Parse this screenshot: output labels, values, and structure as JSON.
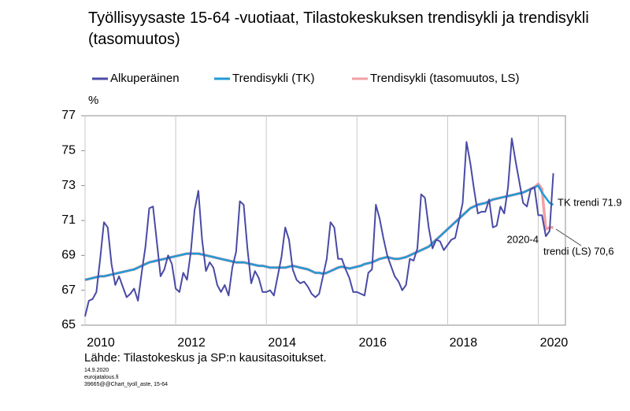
{
  "chart_data": {
    "type": "line",
    "title": "Työllisyysaste 15-64 -vuotiaat, Tilastokeskuksen trendisykli ja trendisykli (tasomuutos)",
    "y_label": "%",
    "source": "Lähde: Tilastokeskus ja SP:n kausitasoitukset.",
    "footnotes": [
      "14.9.2020",
      "eurojatalous.fi",
      "39665@@Chart_tyoll_aste, 15-64"
    ],
    "annotations": [
      "TK trendi 71.9",
      "2020-4",
      "trendi (LS) 70,6"
    ],
    "xlim": [
      2010,
      2020.6
    ],
    "xticks": [
      2010,
      2012,
      2014,
      2016,
      2018,
      2020
    ],
    "ylim": [
      65,
      77
    ],
    "yticks": [
      65,
      67,
      69,
      71,
      73,
      75,
      77
    ],
    "grid": true,
    "legend": "top",
    "x": [
      2010,
      2010.083,
      2010.167,
      2010.25,
      2010.333,
      2010.417,
      2010.5,
      2010.583,
      2010.667,
      2010.75,
      2010.833,
      2010.917,
      2011,
      2011.083,
      2011.167,
      2011.25,
      2011.333,
      2011.417,
      2011.5,
      2011.583,
      2011.667,
      2011.75,
      2011.833,
      2011.917,
      2012,
      2012.083,
      2012.167,
      2012.25,
      2012.333,
      2012.417,
      2012.5,
      2012.583,
      2012.667,
      2012.75,
      2012.833,
      2012.917,
      2013,
      2013.083,
      2013.167,
      2013.25,
      2013.333,
      2013.417,
      2013.5,
      2013.583,
      2013.667,
      2013.75,
      2013.833,
      2013.917,
      2014,
      2014.083,
      2014.167,
      2014.25,
      2014.333,
      2014.417,
      2014.5,
      2014.583,
      2014.667,
      2014.75,
      2014.833,
      2014.917,
      2015,
      2015.083,
      2015.167,
      2015.25,
      2015.333,
      2015.417,
      2015.5,
      2015.583,
      2015.667,
      2015.75,
      2015.833,
      2015.917,
      2016,
      2016.083,
      2016.167,
      2016.25,
      2016.333,
      2016.417,
      2016.5,
      2016.583,
      2016.667,
      2016.75,
      2016.833,
      2016.917,
      2017,
      2017.083,
      2017.167,
      2017.25,
      2017.333,
      2017.417,
      2017.5,
      2017.583,
      2017.667,
      2017.75,
      2017.833,
      2017.917,
      2018,
      2018.083,
      2018.167,
      2018.25,
      2018.333,
      2018.417,
      2018.5,
      2018.583,
      2018.667,
      2018.75,
      2018.833,
      2018.917,
      2019,
      2019.083,
      2019.167,
      2019.25,
      2019.333,
      2019.417,
      2019.5,
      2019.583,
      2019.667,
      2019.75,
      2019.833,
      2019.917,
      2020,
      2020.083,
      2020.167,
      2020.25,
      2020.333
    ],
    "series": [
      {
        "name": "Alkuperäinen",
        "color": "#4a4aa6",
        "width": 2,
        "values": [
          65.5,
          66.4,
          66.5,
          66.9,
          68.8,
          70.9,
          70.6,
          68.5,
          67.3,
          67.8,
          67.2,
          66.6,
          66.8,
          67.1,
          66.4,
          68.0,
          69.5,
          71.7,
          71.8,
          69.8,
          67.8,
          68.2,
          69.0,
          68.5,
          67.1,
          66.9,
          68.0,
          67.6,
          69.2,
          71.6,
          72.7,
          69.9,
          68.1,
          68.6,
          68.3,
          67.3,
          66.9,
          67.3,
          66.7,
          68.3,
          69.2,
          72.1,
          71.9,
          69.4,
          67.4,
          68.1,
          67.7,
          66.9,
          66.9,
          67.0,
          66.7,
          67.8,
          68.9,
          70.6,
          69.9,
          68.2,
          67.6,
          67.4,
          67.5,
          67.2,
          66.8,
          66.6,
          66.8,
          67.8,
          68.8,
          70.9,
          70.6,
          68.8,
          68.8,
          68.2,
          67.7,
          66.9,
          66.9,
          66.8,
          66.7,
          68.0,
          68.2,
          71.9,
          71.1,
          70.0,
          69.0,
          68.4,
          67.8,
          67.5,
          67.0,
          67.3,
          68.8,
          68.7,
          69.4,
          72.5,
          72.3,
          70.6,
          69.4,
          69.9,
          69.8,
          69.3,
          69.6,
          69.9,
          70.0,
          71.0,
          72.0,
          75.5,
          74.3,
          72.8,
          71.4,
          71.5,
          71.5,
          72.2,
          70.6,
          70.7,
          71.8,
          71.4,
          72.9,
          75.7,
          74.4,
          73.2,
          72.0,
          71.8,
          72.8,
          72.9,
          71.3,
          71.3,
          70.1,
          70.4,
          73.7
        ]
      },
      {
        "name": "Trendisykli (TK)",
        "color": "#1f9bd7",
        "width": 2.5,
        "values": [
          67.6,
          67.65,
          67.7,
          67.75,
          67.8,
          67.8,
          67.85,
          67.9,
          67.95,
          68.0,
          68.05,
          68.1,
          68.15,
          68.2,
          68.3,
          68.4,
          68.5,
          68.6,
          68.65,
          68.7,
          68.75,
          68.8,
          68.85,
          68.9,
          68.95,
          69.0,
          69.05,
          69.1,
          69.1,
          69.1,
          69.1,
          69.05,
          69.0,
          68.95,
          68.9,
          68.85,
          68.8,
          68.75,
          68.7,
          68.65,
          68.6,
          68.6,
          68.6,
          68.55,
          68.5,
          68.45,
          68.4,
          68.4,
          68.35,
          68.3,
          68.3,
          68.3,
          68.3,
          68.3,
          68.35,
          68.4,
          68.35,
          68.3,
          68.25,
          68.2,
          68.1,
          68.0,
          68.0,
          67.95,
          68.0,
          68.1,
          68.2,
          68.3,
          68.35,
          68.3,
          68.25,
          68.3,
          68.35,
          68.4,
          68.5,
          68.55,
          68.6,
          68.7,
          68.8,
          68.85,
          68.9,
          68.85,
          68.8,
          68.8,
          68.85,
          68.9,
          69.0,
          69.1,
          69.2,
          69.3,
          69.4,
          69.5,
          69.7,
          69.9,
          70.1,
          70.3,
          70.5,
          70.7,
          70.9,
          71.1,
          71.3,
          71.5,
          71.7,
          71.8,
          71.9,
          71.95,
          72.0,
          72.1,
          72.2,
          72.25,
          72.3,
          72.35,
          72.4,
          72.45,
          72.5,
          72.55,
          72.6,
          72.7,
          72.8,
          72.9,
          73.0,
          72.6,
          72.3,
          72.0,
          71.9
        ]
      },
      {
        "name": "Trendisykli (tasomuutos, LS)",
        "color": "#f0a0a4",
        "width": 3.5,
        "values": [
          67.6,
          67.65,
          67.7,
          67.75,
          67.8,
          67.8,
          67.85,
          67.9,
          67.95,
          68.0,
          68.05,
          68.1,
          68.15,
          68.2,
          68.3,
          68.4,
          68.5,
          68.6,
          68.65,
          68.7,
          68.75,
          68.8,
          68.85,
          68.9,
          68.95,
          69.0,
          69.05,
          69.1,
          69.1,
          69.1,
          69.1,
          69.05,
          69.0,
          68.95,
          68.9,
          68.85,
          68.8,
          68.75,
          68.7,
          68.65,
          68.6,
          68.6,
          68.6,
          68.55,
          68.5,
          68.45,
          68.4,
          68.4,
          68.35,
          68.3,
          68.3,
          68.3,
          68.3,
          68.3,
          68.35,
          68.4,
          68.35,
          68.3,
          68.25,
          68.2,
          68.1,
          68.0,
          68.0,
          67.95,
          68.0,
          68.1,
          68.2,
          68.3,
          68.35,
          68.3,
          68.25,
          68.3,
          68.35,
          68.4,
          68.5,
          68.55,
          68.6,
          68.7,
          68.8,
          68.85,
          68.9,
          68.85,
          68.8,
          68.8,
          68.85,
          68.9,
          69.0,
          69.1,
          69.2,
          69.3,
          69.4,
          69.5,
          69.7,
          69.9,
          70.1,
          70.3,
          70.5,
          70.7,
          70.9,
          71.1,
          71.3,
          71.5,
          71.7,
          71.8,
          71.9,
          71.95,
          72.0,
          72.1,
          72.2,
          72.25,
          72.3,
          72.35,
          72.4,
          72.45,
          72.5,
          72.55,
          72.6,
          72.7,
          72.8,
          72.9,
          73.1,
          72.8,
          70.5,
          70.6,
          70.6
        ]
      }
    ]
  }
}
